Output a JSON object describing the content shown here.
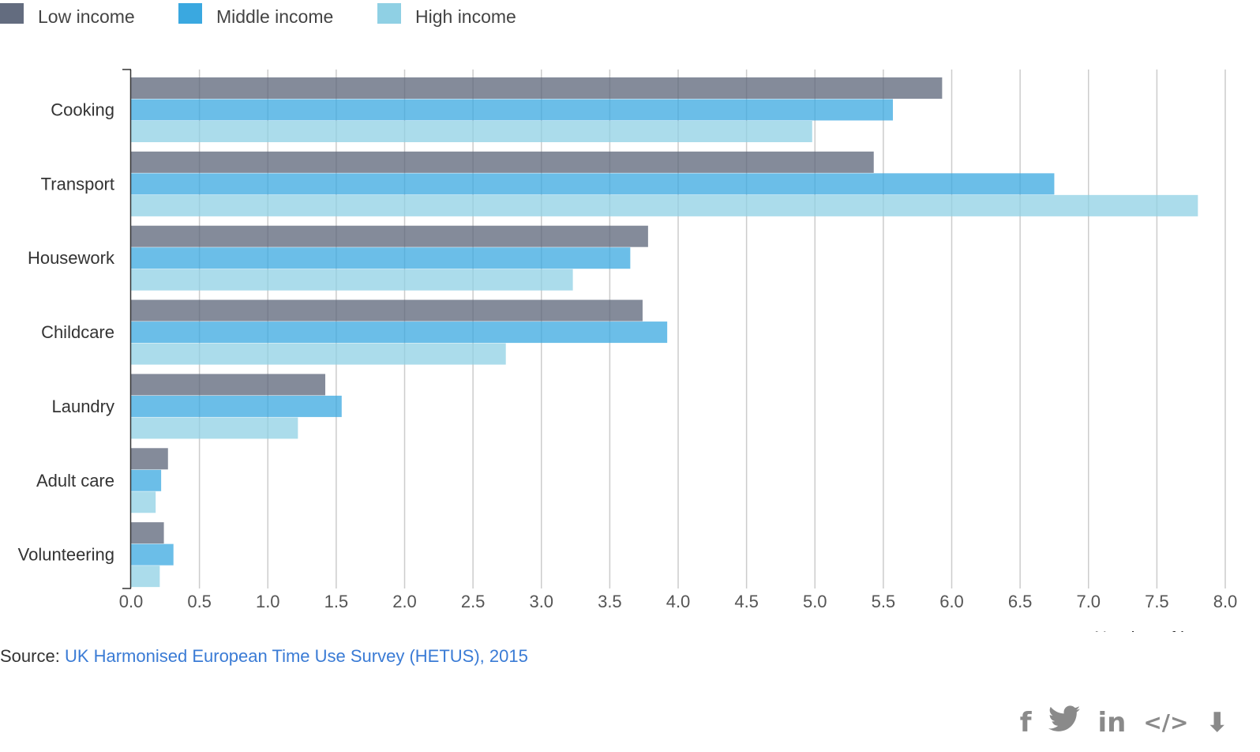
{
  "chart_data": {
    "type": "bar",
    "orientation": "horizontal",
    "categories": [
      "Cooking",
      "Transport",
      "Housework",
      "Childcare",
      "Laundry",
      "Adult care",
      "Volunteering"
    ],
    "series": [
      {
        "name": "Low income",
        "color": "#5b6478",
        "values": [
          5.93,
          5.43,
          3.78,
          3.74,
          1.42,
          0.27,
          0.24
        ]
      },
      {
        "name": "Middle income",
        "color": "#3aa8e0",
        "values": [
          5.57,
          6.75,
          3.65,
          3.92,
          1.54,
          0.22,
          0.31
        ]
      },
      {
        "name": "High income",
        "color": "#8fd0e4",
        "values": [
          4.98,
          7.8,
          3.23,
          2.74,
          1.22,
          0.18,
          0.21
        ]
      }
    ],
    "xlim": [
      0,
      8
    ],
    "xticks": [
      "0.0",
      "0.5",
      "1.0",
      "1.5",
      "2.0",
      "2.5",
      "3.0",
      "3.5",
      "4.0",
      "4.5",
      "5.0",
      "5.5",
      "6.0",
      "6.5",
      "7.0",
      "7.5",
      "8.0"
    ],
    "xlabel": "Number of hours",
    "ylabel": "",
    "title": "",
    "grid": true,
    "legend": "top-left"
  },
  "source": {
    "prefix": "Source: ",
    "link_text": "UK Harmonised European Time Use Survey (HETUS), 2015"
  },
  "share": {
    "facebook": "f",
    "twitter": "🐦",
    "linkedin": "in",
    "embed": "</>",
    "download": "⬇",
    "icons": [
      "facebook-icon",
      "twitter-icon",
      "linkedin-icon",
      "embed-icon",
      "download-icon"
    ]
  }
}
